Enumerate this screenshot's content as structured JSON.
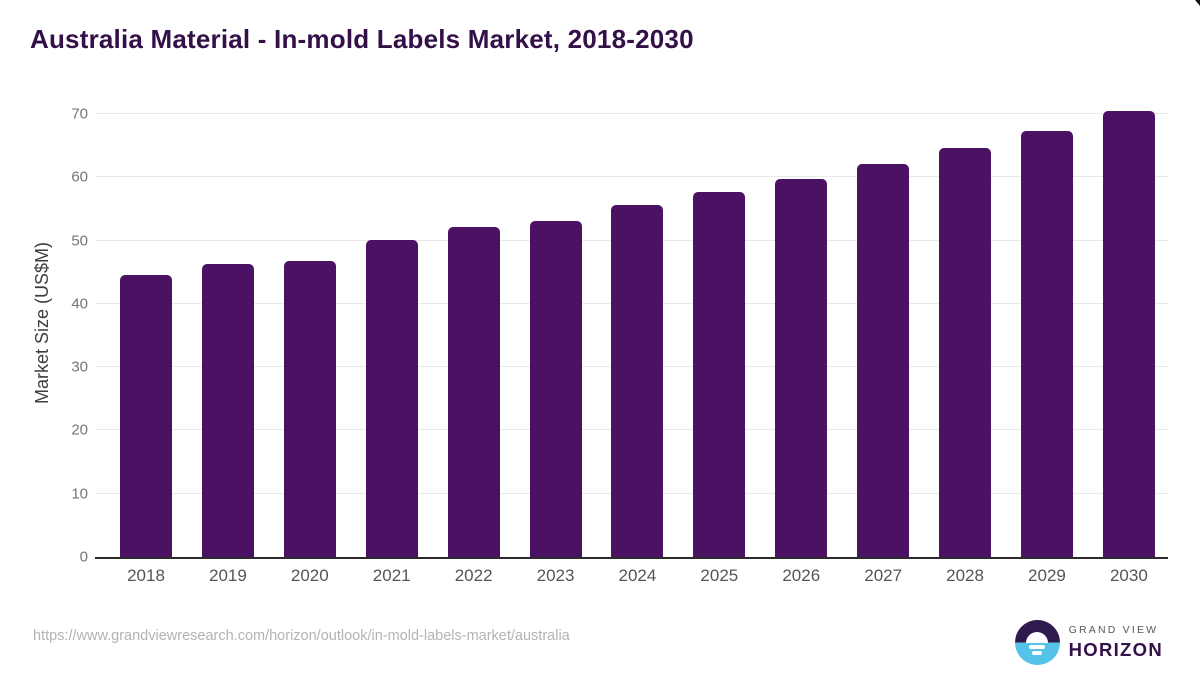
{
  "title": "Australia Material - In-mold Labels Market, 2018-2030",
  "footer": {
    "source_url": "https://www.grandviewresearch.com/horizon/outlook/in-mold-labels-market/australia",
    "logo": {
      "line1": "GRAND VIEW",
      "line2": "HORIZON"
    }
  },
  "colors": {
    "bar": "#4b1163",
    "title": "#331048",
    "axis_line": "#2b2b2b",
    "gridline": "#e9e9e9",
    "tick_label": "#757575",
    "x_label": "#555555",
    "y_axis_title": "#3d3d3d",
    "source_url": "#b3b3b3",
    "logo_dark_half": "#2e1a4d",
    "logo_blue_half": "#56c3ea"
  },
  "chart_data": {
    "type": "bar",
    "title": "Australia Material - In-mold Labels Market, 2018-2030",
    "categories": [
      "2018",
      "2019",
      "2020",
      "2021",
      "2022",
      "2023",
      "2024",
      "2025",
      "2026",
      "2027",
      "2028",
      "2029",
      "2030"
    ],
    "values": [
      44.6,
      46.3,
      46.8,
      50.1,
      52.2,
      53.1,
      55.7,
      57.7,
      59.8,
      62.1,
      64.6,
      67.3,
      70.5
    ],
    "xlabel": "",
    "ylabel": "Market Size (US$M)",
    "ylim": [
      0,
      70
    ],
    "yticks": [
      0,
      10,
      20,
      30,
      40,
      50,
      60,
      70
    ],
    "grid": true,
    "legend": false,
    "bar_color": "#4b1163"
  }
}
